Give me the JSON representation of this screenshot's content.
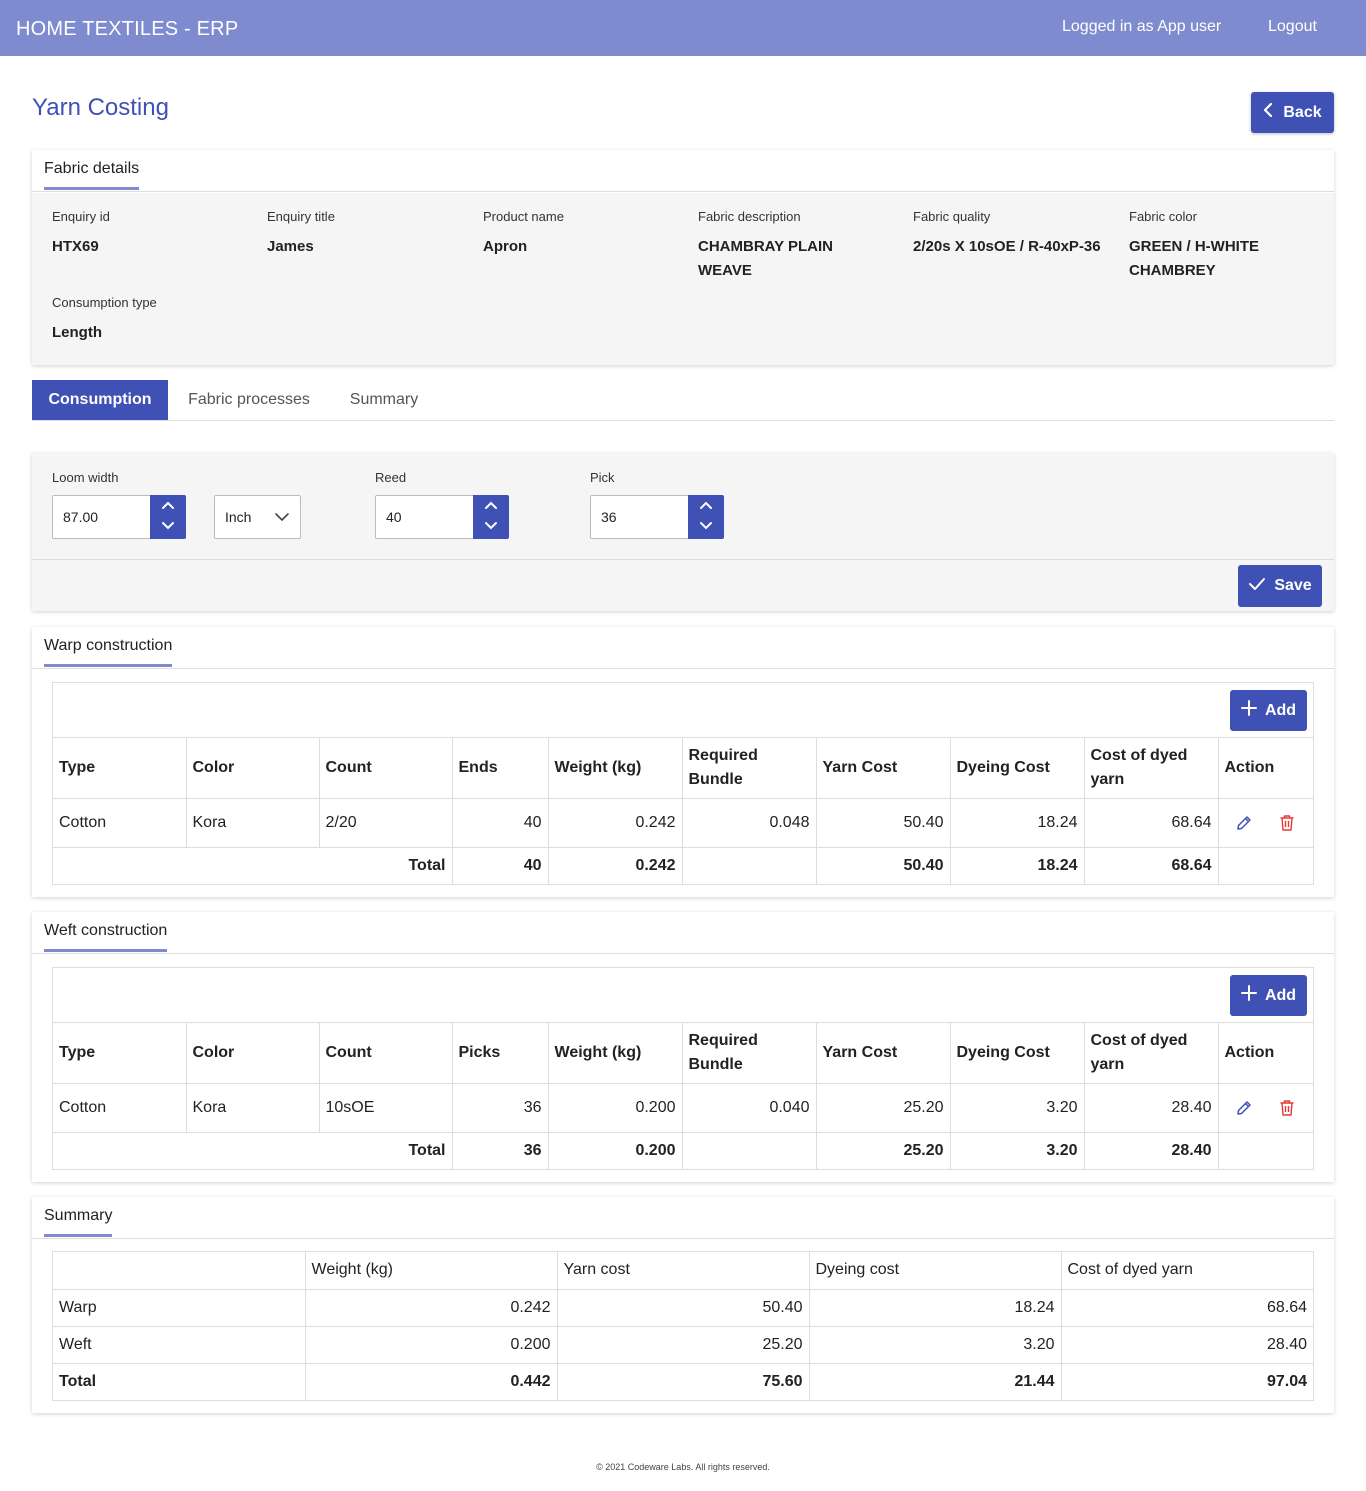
{
  "header": {
    "brand": "HOME TEXTILES - ERP",
    "user": "Logged in as App user",
    "logout": "Logout"
  },
  "page": {
    "title": "Yarn Costing",
    "back_label": "Back"
  },
  "fabric_details": {
    "title": "Fabric details",
    "items": [
      {
        "label": "Enquiry id",
        "value": "HTX69"
      },
      {
        "label": "Enquiry title",
        "value": "James"
      },
      {
        "label": "Product name",
        "value": "Apron"
      },
      {
        "label": "Fabric description",
        "value": "CHAMBRAY PLAIN WEAVE"
      },
      {
        "label": "Fabric quality",
        "value": "2/20s X 10sOE / R-40xP-36"
      },
      {
        "label": "Fabric color",
        "value": "GREEN / H-WHITE CHAMBREY"
      },
      {
        "label": "Consumption type",
        "value": "Length"
      }
    ]
  },
  "tabs": [
    {
      "label": "Consumption",
      "active": true
    },
    {
      "label": "Fabric processes",
      "active": false
    },
    {
      "label": "Summary",
      "active": false
    }
  ],
  "consumption": {
    "loom_width_label": "Loom width",
    "loom_width_value": "87.00",
    "unit_value": "Inch",
    "reed_label": "Reed",
    "reed_value": "40",
    "pick_label": "Pick",
    "pick_value": "36",
    "save_label": "Save"
  },
  "warp": {
    "title": "Warp construction",
    "add_label": "Add",
    "headers": [
      "Type",
      "Color",
      "Count",
      "Ends",
      "Weight (kg)",
      "Required Bundle",
      "Yarn Cost",
      "Dyeing Cost",
      "Cost of dyed yarn",
      "Action"
    ],
    "row": {
      "type": "Cotton",
      "color": "Kora",
      "count": "2/20",
      "qty": "40",
      "weight": "0.242",
      "bundle": "0.048",
      "yarn_cost": "50.40",
      "dyeing_cost": "18.24",
      "dyed_cost": "68.64"
    },
    "total": {
      "label": "Total",
      "qty": "40",
      "weight": "0.242",
      "yarn_cost": "50.40",
      "dyeing_cost": "18.24",
      "dyed_cost": "68.64"
    }
  },
  "weft": {
    "title": "Weft construction",
    "add_label": "Add",
    "headers": [
      "Type",
      "Color",
      "Count",
      "Picks",
      "Weight (kg)",
      "Required Bundle",
      "Yarn Cost",
      "Dyeing Cost",
      "Cost of dyed yarn",
      "Action"
    ],
    "row": {
      "type": "Cotton",
      "color": "Kora",
      "count": "10sOE",
      "qty": "36",
      "weight": "0.200",
      "bundle": "0.040",
      "yarn_cost": "25.20",
      "dyeing_cost": "3.20",
      "dyed_cost": "28.40"
    },
    "total": {
      "label": "Total",
      "qty": "36",
      "weight": "0.200",
      "yarn_cost": "25.20",
      "dyeing_cost": "3.20",
      "dyed_cost": "28.40"
    }
  },
  "summary": {
    "title": "Summary",
    "headers": [
      "Weight (kg)",
      "Yarn cost",
      "Dyeing cost",
      "Cost of dyed yarn"
    ],
    "rows": [
      {
        "label": "Warp",
        "weight": "0.242",
        "yarn_cost": "50.40",
        "dyeing_cost": "18.24",
        "dyed_cost": "68.64"
      },
      {
        "label": "Weft",
        "weight": "0.200",
        "yarn_cost": "25.20",
        "dyeing_cost": "3.20",
        "dyed_cost": "28.40"
      },
      {
        "label": "Total",
        "weight": "0.442",
        "yarn_cost": "75.60",
        "dyeing_cost": "21.44",
        "dyed_cost": "97.04"
      }
    ]
  },
  "footer": {
    "text": "© 2021 Codeware Labs. All rights reserved."
  },
  "icons": [
    "chevron-left-icon",
    "check-icon",
    "plus-icon",
    "pencil-icon",
    "trash-icon",
    "chevron-up-icon",
    "chevron-down-icon"
  ],
  "colors": {
    "header_bg": "#7f8bcf",
    "primary": "#3f51b5",
    "delete": "#e53935",
    "panel_bg": "#f5f5f5"
  }
}
